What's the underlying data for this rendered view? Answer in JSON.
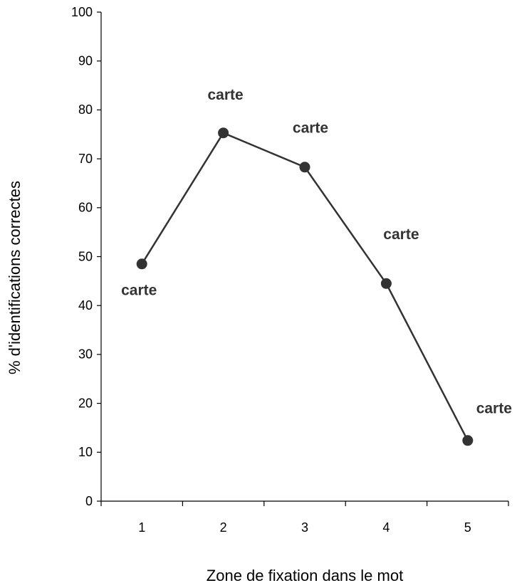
{
  "chart_data": {
    "type": "line",
    "xlabel": "Zone de fixation dans le mot",
    "ylabel": "% d'identifications correctes",
    "categories": [
      "1",
      "2",
      "3",
      "4",
      "5"
    ],
    "series": [
      {
        "name": null,
        "color": "#333333",
        "values": [
          48.5,
          75.3,
          68.3,
          44.5,
          12.4
        ]
      }
    ],
    "point_labels": [
      "carte",
      "carte",
      "carte",
      "carte",
      "carte"
    ],
    "ylim": [
      0,
      100
    ],
    "yticks": [
      0,
      10,
      20,
      30,
      40,
      50,
      60,
      70,
      80,
      90,
      100
    ],
    "grid": false
  }
}
